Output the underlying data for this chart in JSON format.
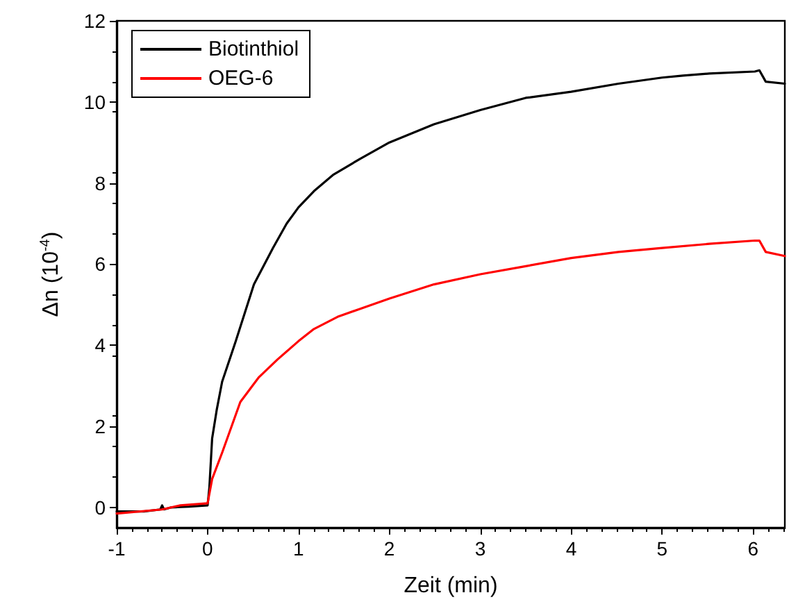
{
  "chart_data": {
    "type": "line",
    "xlabel": "Zeit (min)",
    "ylabel": "Δn (10$^{-4}$)",
    "xlim": [
      -1,
      6.35
    ],
    "xticks": [
      -1,
      0,
      1,
      2,
      3,
      4,
      5,
      6
    ],
    "ylim": [
      -0.5,
      12
    ],
    "yticks": [
      0,
      2,
      4,
      6,
      8,
      10,
      12
    ],
    "grid": false,
    "legend": "top left",
    "line_style": "solid",
    "marker": "none",
    "series": [
      {
        "name": "Biotinthiol",
        "color": "#000000",
        "x": [
          -1,
          -0.7,
          -0.52,
          -0.5,
          -0.48,
          -0.4,
          -0.2,
          0,
          0.02,
          0.05,
          0.1,
          0.16,
          0.31,
          0.51,
          0.72,
          0.87,
          1.0,
          1.17,
          1.38,
          1.68,
          2.0,
          2.49,
          3.0,
          3.5,
          4.0,
          4.52,
          5.0,
          5.23,
          5.52,
          6.02,
          6.07,
          6.14,
          6.35
        ],
        "values": [
          -0.1,
          -0.1,
          -0.05,
          0.05,
          -0.05,
          0.0,
          0.02,
          0.05,
          0.5,
          1.7,
          2.4,
          3.1,
          4.1,
          5.5,
          6.4,
          7.0,
          7.4,
          7.8,
          8.2,
          8.6,
          9.0,
          9.45,
          9.8,
          10.1,
          10.25,
          10.45,
          10.6,
          10.65,
          10.7,
          10.75,
          10.78,
          10.5,
          10.45
        ]
      },
      {
        "name": "OEG-6",
        "color": "#ff0000",
        "x": [
          -1,
          -0.5,
          -0.3,
          0,
          0.05,
          0.16,
          0.36,
          0.56,
          0.77,
          1.0,
          1.17,
          1.43,
          1.68,
          2.0,
          2.49,
          3.0,
          3.5,
          4.0,
          4.52,
          5.0,
          5.52,
          6.02,
          6.07,
          6.14,
          6.35
        ],
        "values": [
          -0.15,
          -0.05,
          0.05,
          0.1,
          0.7,
          1.35,
          2.6,
          3.2,
          3.65,
          4.1,
          4.4,
          4.7,
          4.9,
          5.15,
          5.5,
          5.75,
          5.95,
          6.15,
          6.3,
          6.4,
          6.5,
          6.58,
          6.58,
          6.3,
          6.2
        ]
      }
    ]
  }
}
